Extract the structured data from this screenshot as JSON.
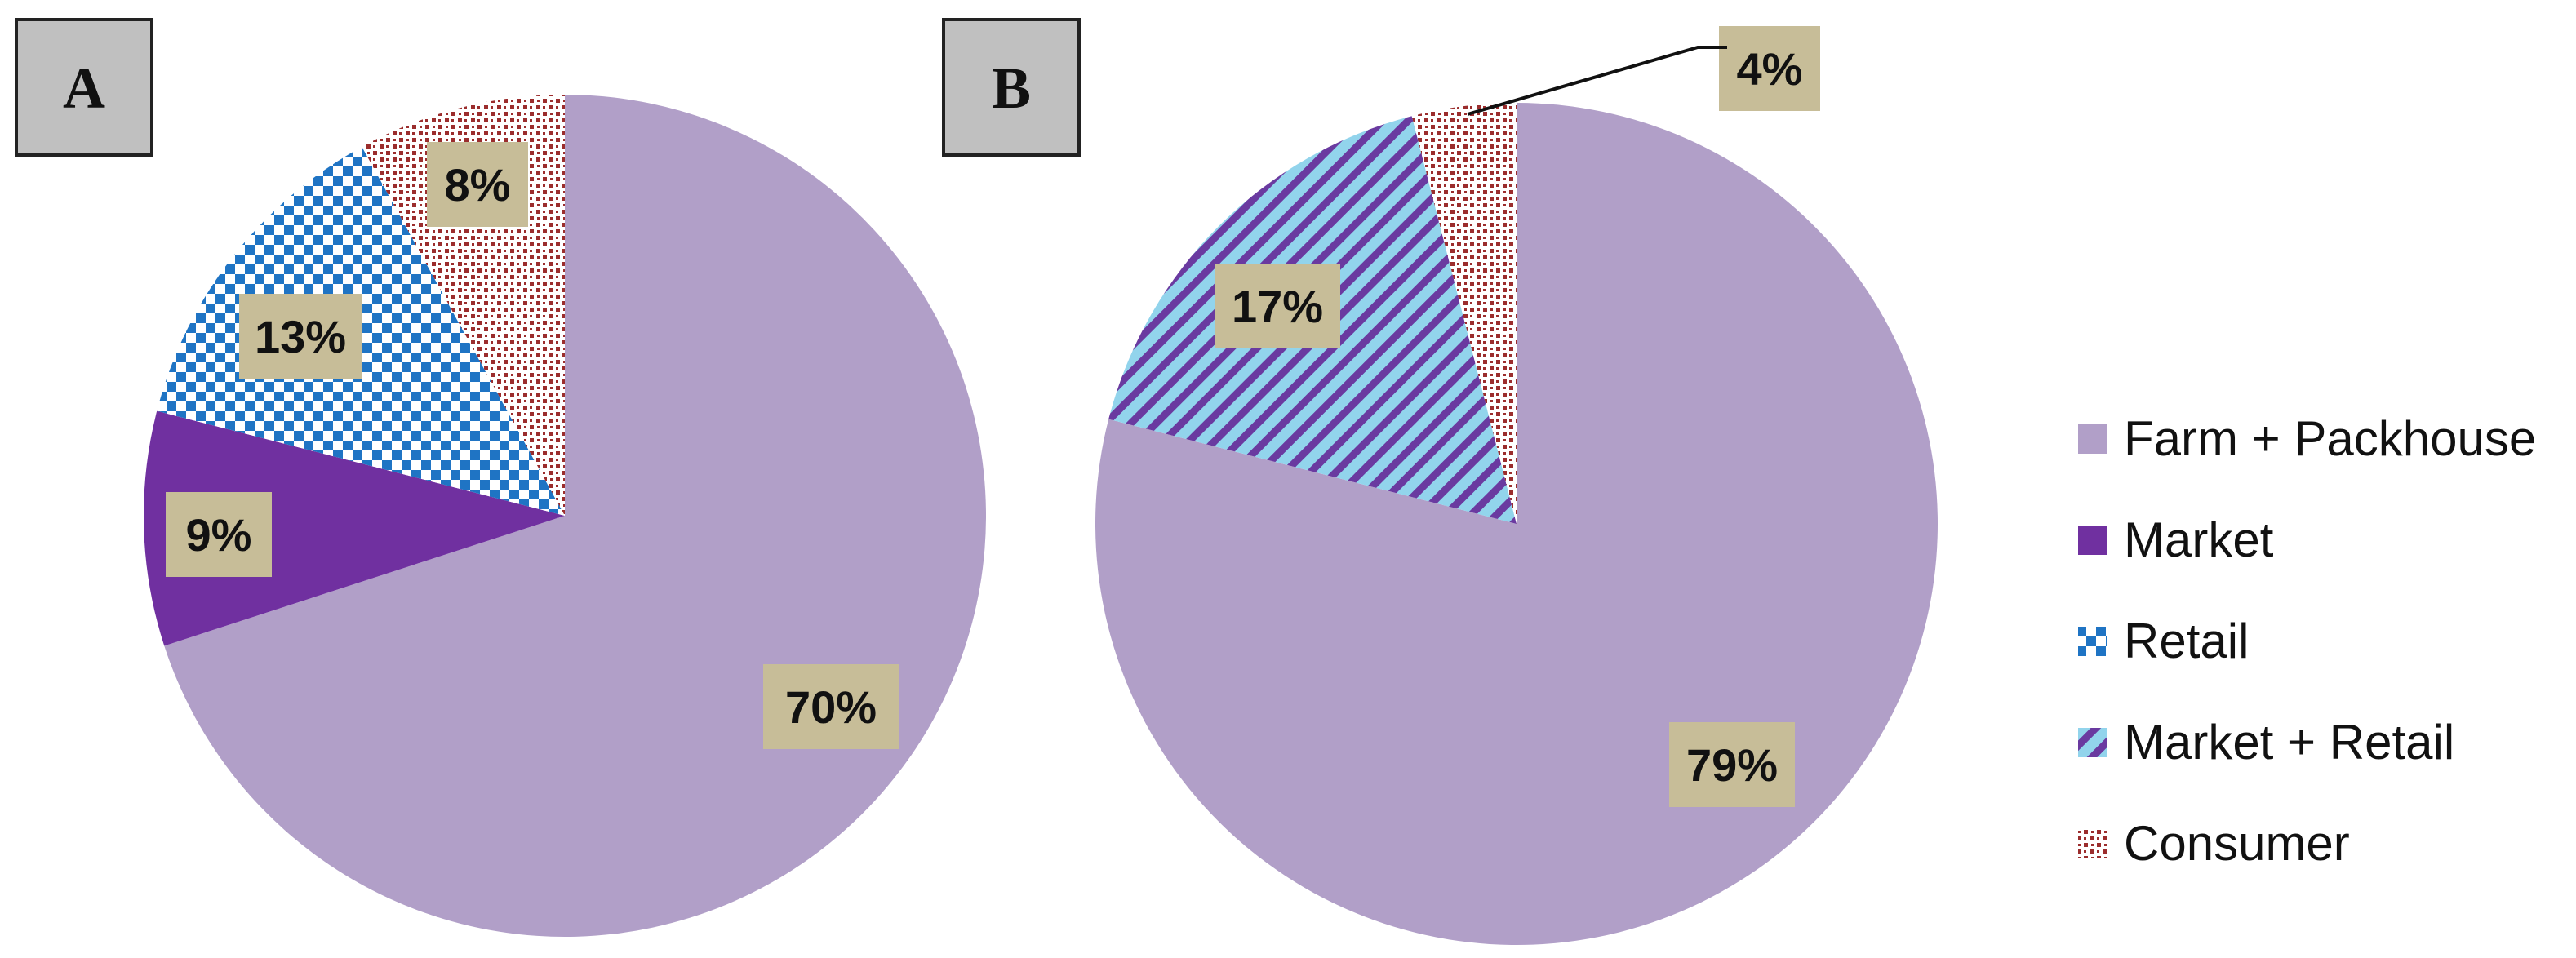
{
  "colors": {
    "farm_packhouse": "#b19fc8",
    "market": "#7030a0",
    "retail_base": "#ffffff",
    "retail_pattern": "#1f74c4",
    "market_retail_light": "#92d4ec",
    "market_retail_dark": "#6a3aa0",
    "consumer_base": "#ffffff",
    "consumer_pattern": "#9b2d2d",
    "label_box": "#c7bd98",
    "panel_box": "#c0c0c0"
  },
  "legend": [
    {
      "key": "farm_packhouse",
      "label": "Farm + Packhouse",
      "icon": "solid-square"
    },
    {
      "key": "market",
      "label": "Market",
      "icon": "solid-square"
    },
    {
      "key": "retail",
      "label": "Retail",
      "icon": "checker-square"
    },
    {
      "key": "market_retail",
      "label": "Market + Retail",
      "icon": "striped-square"
    },
    {
      "key": "consumer",
      "label": "Consumer",
      "icon": "dotted-square"
    }
  ],
  "chart_data": [
    {
      "type": "pie",
      "panel": "A",
      "start": "12 o'clock",
      "direction": "clockwise",
      "slices": [
        {
          "key": "farm_packhouse",
          "name": "Farm + Packhouse",
          "value": 70,
          "label": "70%"
        },
        {
          "key": "market",
          "name": "Market",
          "value": 9,
          "label": "9%"
        },
        {
          "key": "retail",
          "name": "Retail",
          "value": 13,
          "label": "13%"
        },
        {
          "key": "consumer",
          "name": "Consumer",
          "value": 8,
          "label": "8%"
        }
      ]
    },
    {
      "type": "pie",
      "panel": "B",
      "start": "12 o'clock",
      "direction": "clockwise",
      "slices": [
        {
          "key": "farm_packhouse",
          "name": "Farm + Packhouse",
          "value": 79,
          "label": "79%"
        },
        {
          "key": "market_retail",
          "name": "Market + Retail",
          "value": 17,
          "label": "17%"
        },
        {
          "key": "consumer",
          "name": "Consumer",
          "value": 4,
          "label": "4%"
        }
      ]
    }
  ]
}
